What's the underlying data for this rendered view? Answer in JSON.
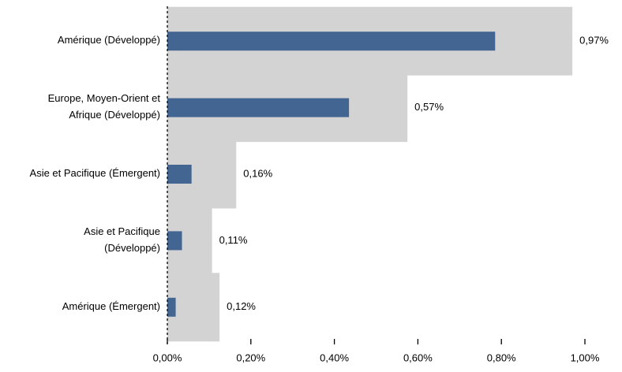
{
  "chart_data": {
    "type": "bar",
    "orientation": "horizontal",
    "categories": [
      [
        "Amérique (Développé)"
      ],
      [
        "Europe, Moyen-Orient et",
        "Afrique (Développé)"
      ],
      [
        "Asie et Pacifique (Émergent)"
      ],
      [
        "Asie et Pacifique",
        "(Développé)"
      ],
      [
        "Amérique (Émergent)"
      ]
    ],
    "series": [
      {
        "values": [
          0.97,
          0.575,
          0.165,
          0.107,
          0.125
        ]
      },
      {
        "values": [
          0.785,
          0.435,
          0.058,
          0.035,
          0.02
        ]
      }
    ],
    "value_labels": [
      "0,97%",
      "0,57%",
      "0,16%",
      "0,11%",
      "0,12%"
    ],
    "xlim": [
      0,
      1.0
    ],
    "x_ticks": [
      0,
      0.2,
      0.4,
      0.6,
      0.8,
      1.0
    ],
    "x_tick_labels": [
      "0,00%",
      "0,20%",
      "0,40%",
      "0,60%",
      "0,80%",
      "1,00%"
    ],
    "grid": false,
    "legend": "none",
    "colors": {
      "background_bar": "#d3d3d3",
      "foreground_bar": "#426592",
      "axis": "#000000"
    }
  }
}
